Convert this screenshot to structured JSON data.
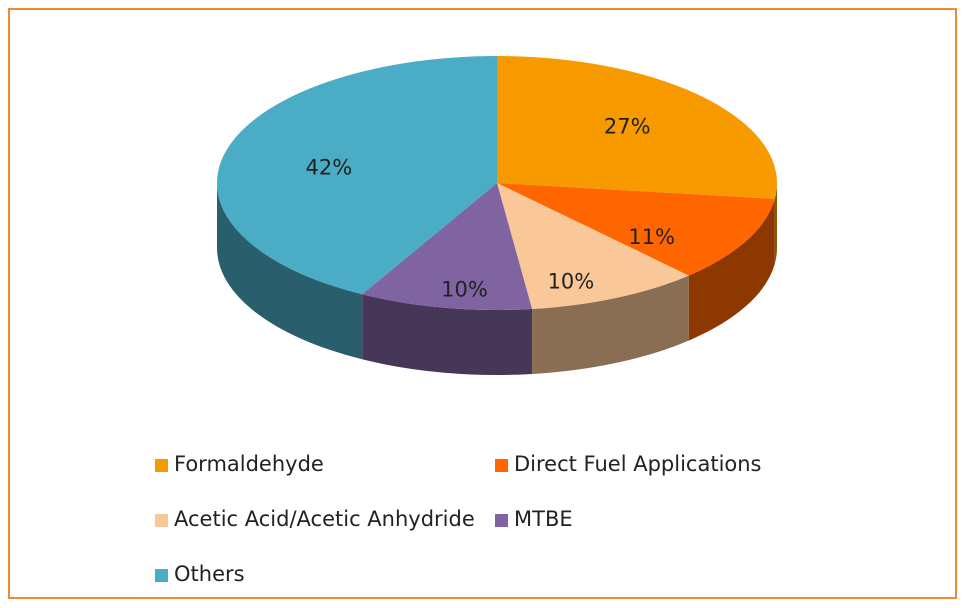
{
  "chart_data": {
    "type": "pie",
    "categories": [
      "Formaldehyde",
      "Direct Fuel Applications",
      "Acetic Acid/Acetic Anhydride",
      "MTBE",
      "Others"
    ],
    "values": [
      27,
      11,
      10,
      10,
      42
    ],
    "value_labels": [
      "27%",
      "11%",
      "10%",
      "10%",
      "42%"
    ],
    "colors": [
      "#f79a00",
      "#ff6600",
      "#fac898",
      "#8064a2",
      "#4aacc5"
    ],
    "legend": "bottom"
  }
}
